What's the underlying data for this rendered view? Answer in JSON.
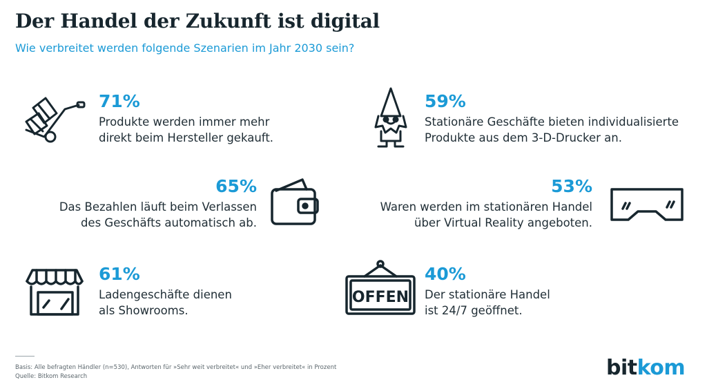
{
  "header": {
    "title": "Der Handel der Zukunft ist digital",
    "subtitle": "Wie verbreitet werden folgende Szenarien im Jahr 2030 sein?"
  },
  "items": [
    {
      "percent": "71%",
      "lines": [
        "Produkte werden immer mehr",
        "direkt beim Hersteller gekauft."
      ],
      "icon": "hand-truck-icon"
    },
    {
      "percent": "59%",
      "lines": [
        "Stationäre Geschäfte bieten individualisierte",
        "Produkte aus dem 3-D-Drucker an."
      ],
      "icon": "garden-gnome-icon"
    },
    {
      "percent": "65%",
      "lines": [
        "Das Bezahlen läuft beim Verlassen",
        "des Geschäfts automatisch ab."
      ],
      "icon": "wallet-icon"
    },
    {
      "percent": "53%",
      "lines": [
        "Waren werden im stationären Handel",
        "über Virtual Reality angeboten."
      ],
      "icon": "vr-glasses-icon"
    },
    {
      "percent": "61%",
      "lines": [
        "Ladengeschäfte dienen",
        "als Showrooms."
      ],
      "icon": "storefront-icon"
    },
    {
      "percent": "40%",
      "lines": [
        "Der stationäre Handel",
        "ist 24/7 geöffnet."
      ],
      "icon": "open-sign-icon",
      "sign_text": "OFFEN"
    }
  ],
  "footer": {
    "basis": "Basis: Alle befragten Händler (n=530), Antworten für »Sehr weit verbreitet« und »Eher verbreitet« in Prozent",
    "source": "Quelle: Bitkom Research"
  },
  "logo": {
    "part1": "bit",
    "part2": "kom"
  },
  "colors": {
    "accent": "#1b9ad6",
    "dark": "#17262e"
  }
}
